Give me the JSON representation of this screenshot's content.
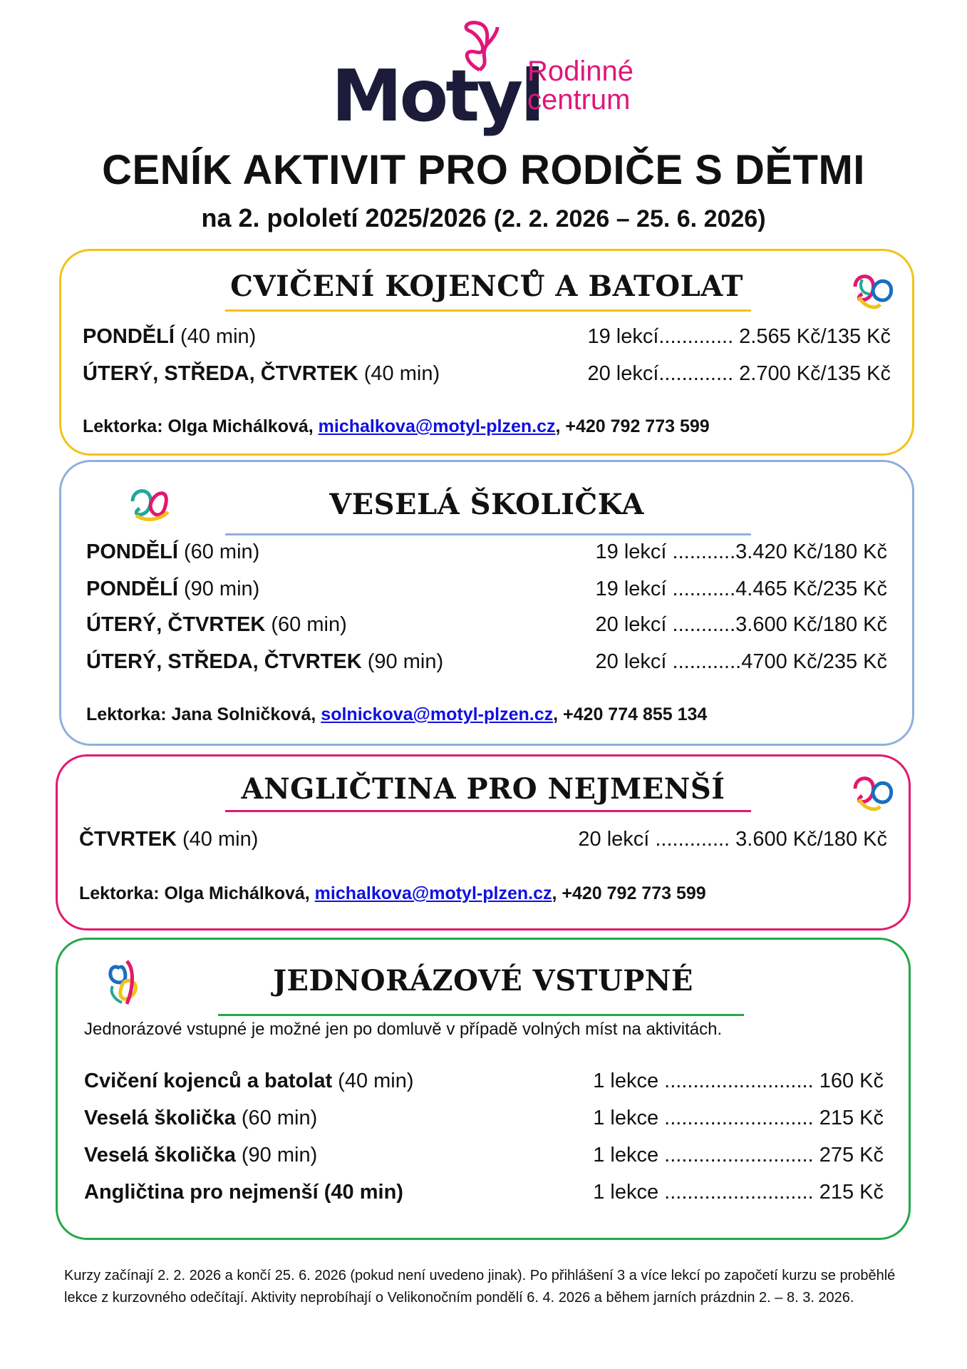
{
  "logo": {
    "name": "Motyl",
    "tagline_1": "Rodinné",
    "tagline_2": "centrum"
  },
  "title": "CENÍK AKTIVIT PRO RODIČE S DĚTMI",
  "subtitle": {
    "bold": "na 2. pololetí 2025/2026",
    "range": "(2. 2. 2026 – 25. 6. 2026)"
  },
  "colors": {
    "yellow": "#f2c21b",
    "blue": "#8fb0dc",
    "pink": "#e3186d",
    "green": "#22a84a",
    "link": "#1010e0"
  },
  "sections": [
    {
      "heading": "CVIČENÍ KOJENCŮ A BATOLAT",
      "rows": [
        {
          "day": "PONDĚLÍ",
          "dur": " (40 min)",
          "price": "19 lekcí............. 2.565 Kč/135 Kč"
        },
        {
          "day": "ÚTERÝ, STŘEDA, ČTVRTEK",
          "dur": " (40 min)",
          "price": "20 lekcí............. 2.700 Kč/135 Kč"
        }
      ],
      "lektor": {
        "prefix": "Lektorka: Olga Michálková, ",
        "email": "michalkova@motyl-plzen.cz",
        "phone": ", +420 792 773 599"
      }
    },
    {
      "heading": "VESELÁ ŠKOLIČKA",
      "rows": [
        {
          "day": "PONDĚLÍ",
          "dur": " (60 min)",
          "price": "19 lekcí  ...........3.420 Kč/180 Kč"
        },
        {
          "day": "PONDĚLÍ",
          "dur": " (90 min)",
          "price": "19 lekcí  ...........4.465 Kč/235 Kč"
        },
        {
          "day": "ÚTERÝ, ČTVRTEK",
          "dur": " (60 min)",
          "price": "20 lekcí  ...........3.600 Kč/180 Kč"
        },
        {
          "day": "ÚTERÝ, STŘEDA, ČTVRTEK",
          "dur": " (90 min)",
          "price": "20 lekcí  ............4700 Kč/235 Kč"
        }
      ],
      "lektor": {
        "prefix": "Lektorka: Jana Solničková, ",
        "email": "solnickova@motyl-plzen.cz",
        "phone": ", +420 774 855 134"
      }
    },
    {
      "heading": "ANGLIČTINA PRO NEJMENŠÍ",
      "rows": [
        {
          "day": "ČTVRTEK",
          "dur": " (40 min)",
          "price": "20 lekcí ............. 3.600 Kč/180 Kč"
        }
      ],
      "lektor": {
        "prefix": "Lektorka: Olga Michálková, ",
        "email": "michalkova@motyl-plzen.cz",
        "phone": ", +420 792 773 599"
      }
    },
    {
      "heading": "JEDNORÁZOVÉ VSTUPNÉ",
      "note": "Jednorázové vstupné je možné jen po domluvě v případě volných míst na aktivitách.",
      "rows": [
        {
          "day": "Cvičení kojenců a batolat",
          "dur": " (40 min)",
          "price": "1 lekce .......................... 160 Kč"
        },
        {
          "day": "Veselá školička",
          "dur": " (60 min)",
          "price": "1 lekce .......................... 215 Kč"
        },
        {
          "day": "Veselá školička",
          "dur": " (90 min)",
          "price": "1 lekce .......................... 275 Kč"
        },
        {
          "day": "Angličtina pro nejmenší (40 min)",
          "dur": "",
          "price": "1 lekce .......................... 215 Kč"
        }
      ]
    }
  ],
  "footer": "Kurzy začínají 2. 2. 2026 a končí 25. 6. 2026 (pokud není uvedeno jinak). Po přihlášení 3 a více lekcí po započetí kurzu se proběhlé lekce z kurzovného odečítají. Aktivity neprobíhají o Velikonočním pondělí 6. 4. 2026 a během jarních prázdnin 2. – 8. 3. 2026."
}
